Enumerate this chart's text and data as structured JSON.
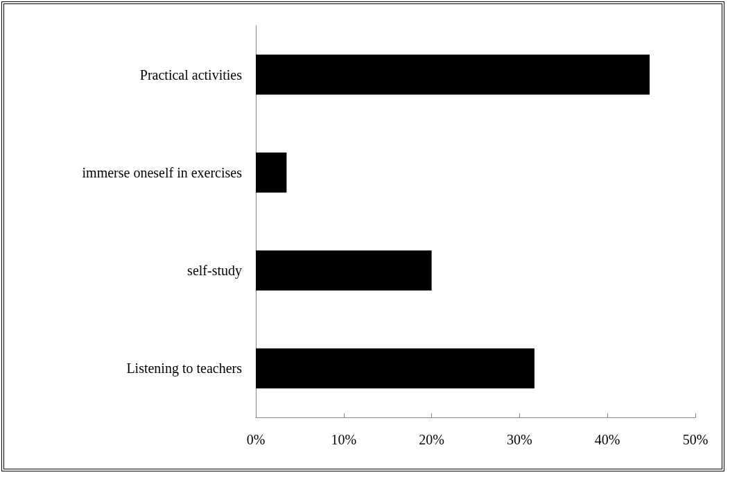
{
  "chart_data": {
    "type": "bar",
    "orientation": "horizontal",
    "categories": [
      "Practical activities",
      "immerse oneself in exercises",
      "self-study",
      "Listening to teachers"
    ],
    "values": [
      44.8,
      3.5,
      20,
      31.7
    ],
    "color": "#000000",
    "xlim": [
      0,
      50
    ],
    "xticks": [
      {
        "value": 0,
        "label": "0%"
      },
      {
        "value": 10,
        "label": "10%"
      },
      {
        "value": 20,
        "label": "20%"
      },
      {
        "value": 30,
        "label": "30%"
      },
      {
        "value": 40,
        "label": "40%"
      },
      {
        "value": 50,
        "label": "50%"
      }
    ],
    "grid": false
  }
}
